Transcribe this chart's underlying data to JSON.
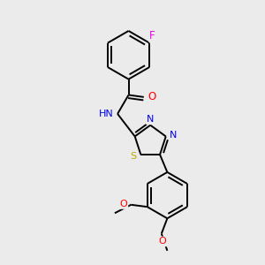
{
  "background_color": "#ebebeb",
  "bond_color": "#000000",
  "atom_colors": {
    "F": "#ee00ee",
    "O": "#ff0000",
    "N": "#0000ee",
    "S": "#bbaa00",
    "C": "#000000",
    "H": "#000000"
  },
  "figsize": [
    3.0,
    3.0
  ],
  "dpi": 100
}
